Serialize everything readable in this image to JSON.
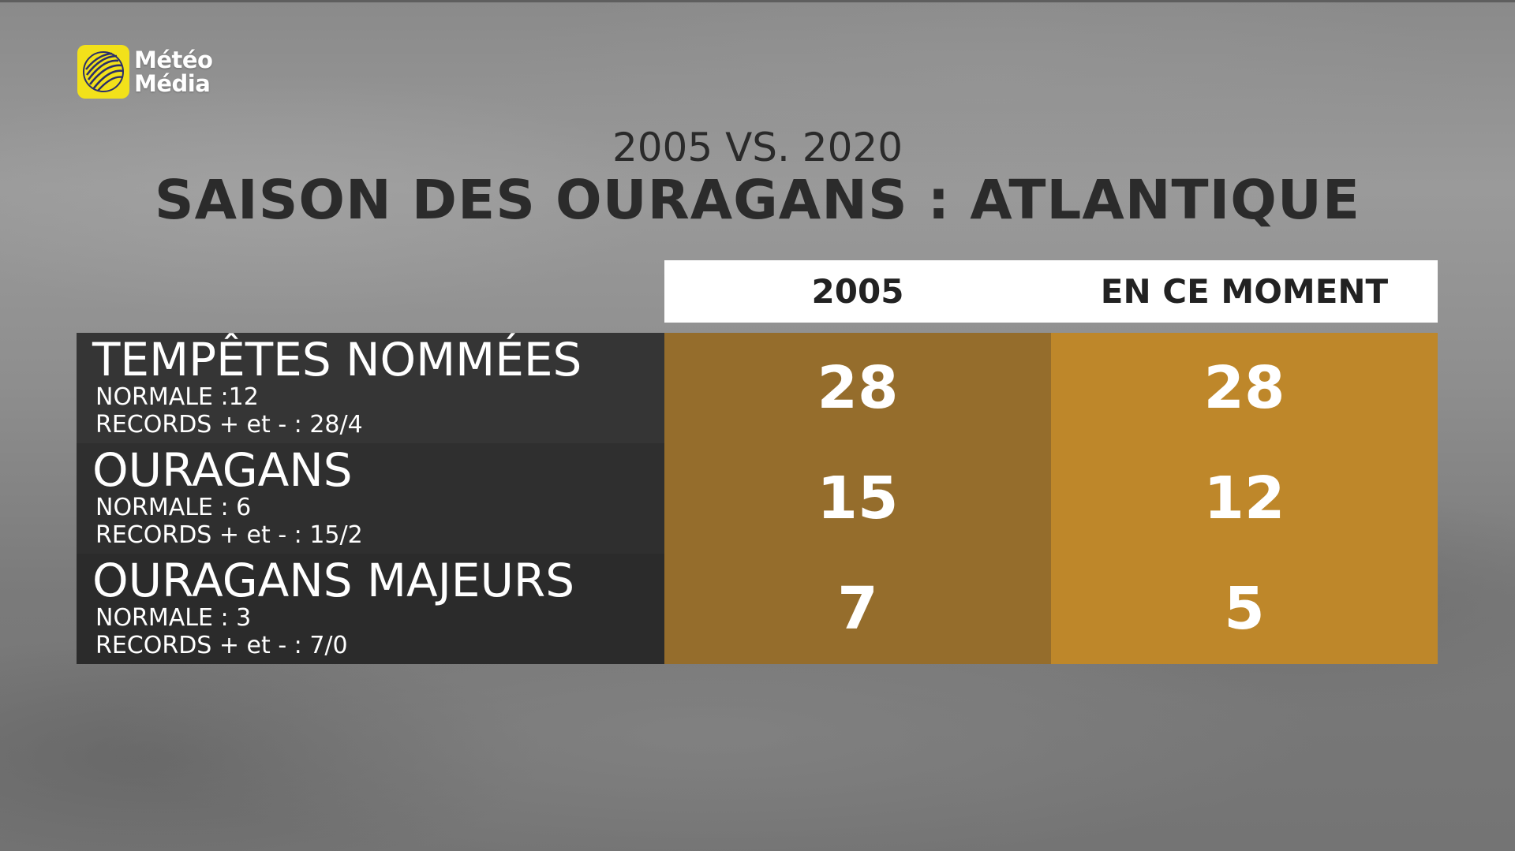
{
  "brand": {
    "name_line1": "Météo",
    "name_line2": "Média",
    "logo_color": "#f2e11a",
    "logo_icon": "globe-logo-icon"
  },
  "subtitle": "2005 VS. 2020",
  "title": "SAISON DES OURAGANS : ATLANTIQUE",
  "table": {
    "columns": [
      "2005",
      "EN CE MOMENT"
    ],
    "rows": [
      {
        "label": "TEMPÊTES NOMMÉES",
        "normal": "NORMALE :12",
        "records": "RECORDS + et - : 28/4",
        "values": [
          "28",
          "28"
        ]
      },
      {
        "label": "OURAGANS",
        "normal": "NORMALE : 6",
        "records": "RECORDS + et - : 15/2",
        "values": [
          "15",
          "12"
        ]
      },
      {
        "label": "OURAGANS MAJEURS",
        "normal": "NORMALE : 3",
        "records": "RECORDS + et - : 7/0",
        "values": [
          "7",
          "5"
        ]
      }
    ]
  },
  "colors": {
    "col_2005": "#956d2c",
    "col_current": "#be872a",
    "label_bg": "#2f2f2f",
    "header_bg": "#ffffff"
  }
}
